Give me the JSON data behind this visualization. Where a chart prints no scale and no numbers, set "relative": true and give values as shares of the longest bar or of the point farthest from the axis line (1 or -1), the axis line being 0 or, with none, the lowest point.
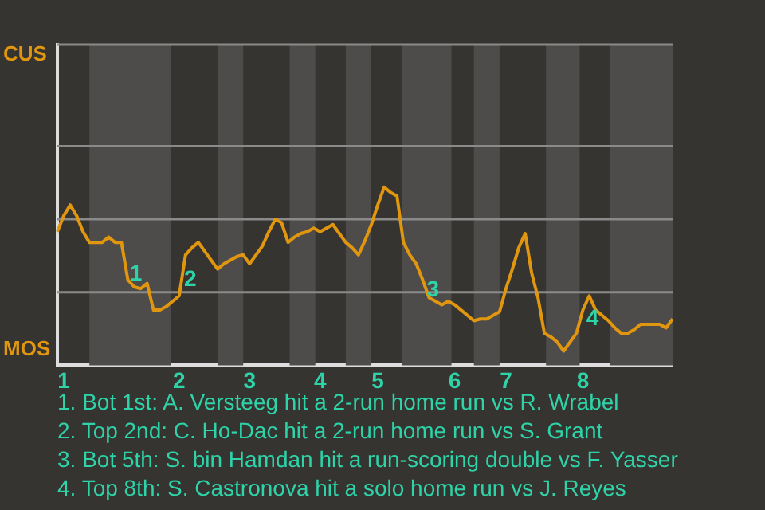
{
  "chart_data": {
    "type": "line",
    "relative": true,
    "categories": [
      null,
      "1",
      null,
      null,
      null,
      null,
      null,
      null,
      null,
      null,
      null,
      null,
      null,
      null,
      null,
      null,
      null,
      null,
      null,
      "2",
      null,
      null,
      null,
      null,
      null,
      null,
      null,
      null,
      null,
      null,
      "3",
      null,
      null,
      null,
      null,
      null,
      null,
      null,
      null,
      null,
      null,
      "4",
      null,
      null,
      null,
      null,
      null,
      null,
      null,
      null,
      "5",
      null,
      null,
      null,
      null,
      null,
      null,
      null,
      null,
      null,
      null,
      null,
      "6",
      null,
      null,
      null,
      null,
      null,
      null,
      null,
      "7",
      null,
      null,
      null,
      null,
      null,
      null,
      null,
      null,
      null,
      null,
      null,
      "8",
      null,
      null,
      null,
      null,
      null,
      null,
      null,
      null,
      null,
      null,
      null,
      null,
      null,
      null
    ],
    "series": [
      {
        "color": "#e0960f",
        "values": [
          0.75,
          0.84,
          0.9,
          0.84,
          0.75,
          0.69,
          0.69,
          0.69,
          0.72,
          0.69,
          0.69,
          0.48,
          0.44,
          0.43,
          0.46,
          0.31,
          0.31,
          0.33,
          0.36,
          0.39,
          0.62,
          0.66,
          0.69,
          0.64,
          0.59,
          0.54,
          0.57,
          0.59,
          0.61,
          0.62,
          0.57,
          0.62,
          0.67,
          0.75,
          0.82,
          0.8,
          0.69,
          0.72,
          0.74,
          0.75,
          0.77,
          0.75,
          0.77,
          0.79,
          0.74,
          0.69,
          0.66,
          0.62,
          0.7,
          0.79,
          0.9,
          1,
          0.97,
          0.95,
          0.69,
          0.62,
          0.57,
          0.48,
          0.38,
          0.36,
          0.34,
          0.36,
          0.34,
          0.31,
          0.28,
          0.25,
          0.26,
          0.26,
          0.28,
          0.3,
          0.43,
          0.54,
          0.66,
          0.74,
          0.52,
          0.38,
          0.18,
          0.16,
          0.13,
          0.08,
          0.13,
          0.18,
          0.31,
          0.39,
          0.31,
          0.28,
          0.25,
          0.21,
          0.18,
          0.18,
          0.2,
          0.23,
          0.23,
          0.23,
          0.23,
          0.21,
          0.26
        ]
      }
    ],
    "marker": "none",
    "line_style": "solid",
    "ref_lines": [
      {
        "axis": "y",
        "value": 0.41,
        "color": "#8a8a8a"
      },
      {
        "axis": "y",
        "value": 0.82,
        "color": "#8a8a8a"
      },
      {
        "axis": "y",
        "value": 1.23,
        "color": "#8a8a8a"
      }
    ],
    "annotations": [
      {
        "text": "1",
        "y": 0.51
      },
      {
        "text": "2",
        "y": 0.48
      },
      {
        "text": "3",
        "y": 0.42
      },
      {
        "text": "4",
        "y": 0.26
      },
      "CUS",
      "MOS",
      "1. Bot 1st: A. Versteeg hit a 2-run home run vs R. Wrabel",
      "2. Top 2nd: C. Ho-Dac hit a 2-run home run vs S. Grant",
      "3. Bot 5th: S. bin Hamdan hit a run-scoring double vs F. Yasser",
      "4. Top 8th: S. Castronova hit a solo home run vs J. Reyes"
    ]
  }
}
